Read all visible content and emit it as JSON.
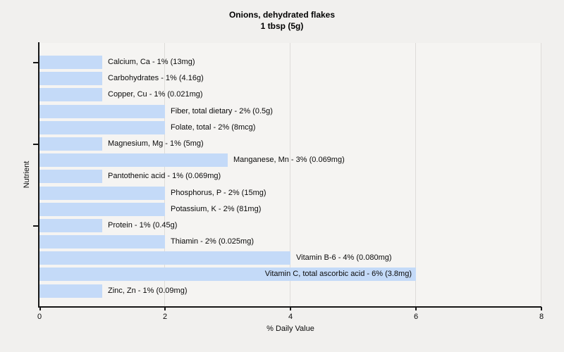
{
  "title": {
    "line1": "Onions, dehydrated flakes",
    "line2": "1 tbsp (5g)"
  },
  "chart_data": {
    "type": "bar",
    "orientation": "horizontal",
    "title": "Onions, dehydrated flakes",
    "subtitle": "1 tbsp (5g)",
    "xlabel": "% Daily Value",
    "ylabel": "Nutrient",
    "xlim": [
      0,
      8
    ],
    "xticks": [
      0,
      2,
      4,
      6,
      8
    ],
    "grid": "vertical",
    "legend": "none",
    "bar_color": "#c4daf8",
    "categories": [
      "Calcium, Ca",
      "Carbohydrates",
      "Copper, Cu",
      "Fiber, total dietary",
      "Folate, total",
      "Magnesium, Mg",
      "Manganese, Mn",
      "Pantothenic acid",
      "Phosphorus, P",
      "Potassium, K",
      "Protein",
      "Thiamin",
      "Vitamin B-6",
      "Vitamin C, total ascorbic acid",
      "Zinc, Zn"
    ],
    "values": [
      1,
      1,
      1,
      2,
      2,
      1,
      3,
      1,
      2,
      2,
      1,
      2,
      4,
      6,
      1
    ],
    "amounts": [
      "13mg",
      "4.16g",
      "0.021mg",
      "0.5g",
      "8mcg",
      "5mg",
      "0.069mg",
      "0.069mg",
      "15mg",
      "81mg",
      "0.45g",
      "0.025mg",
      "0.080mg",
      "3.8mg",
      "0.09mg"
    ],
    "labels": [
      "Calcium, Ca - 1% (13mg)",
      "Carbohydrates - 1% (4.16g)",
      "Copper, Cu - 1% (0.021mg)",
      "Fiber, total dietary - 2% (0.5g)",
      "Folate, total - 2% (8mcg)",
      "Magnesium, Mg - 1% (5mg)",
      "Manganese, Mn - 3% (0.069mg)",
      "Pantothenic acid - 1% (0.069mg)",
      "Phosphorus, P - 2% (15mg)",
      "Potassium, K - 2% (81mg)",
      "Protein - 1% (0.45g)",
      "Thiamin - 2% (0.025mg)",
      "Vitamin B-6 - 4% (0.080mg)",
      "Vitamin C, total ascorbic acid - 6% (3.8mg)",
      "Zinc, Zn - 1% (0.09mg)"
    ],
    "label_inside_index": 13,
    "ytick_rows": [
      0,
      5,
      10
    ]
  },
  "colors": {
    "page_background": "#f1f0ee",
    "plot_background": "#f5f4f2",
    "bar_fill": "#c4daf8",
    "gridline": "#dedcd9",
    "axis": "#161616",
    "text": "#000000"
  }
}
